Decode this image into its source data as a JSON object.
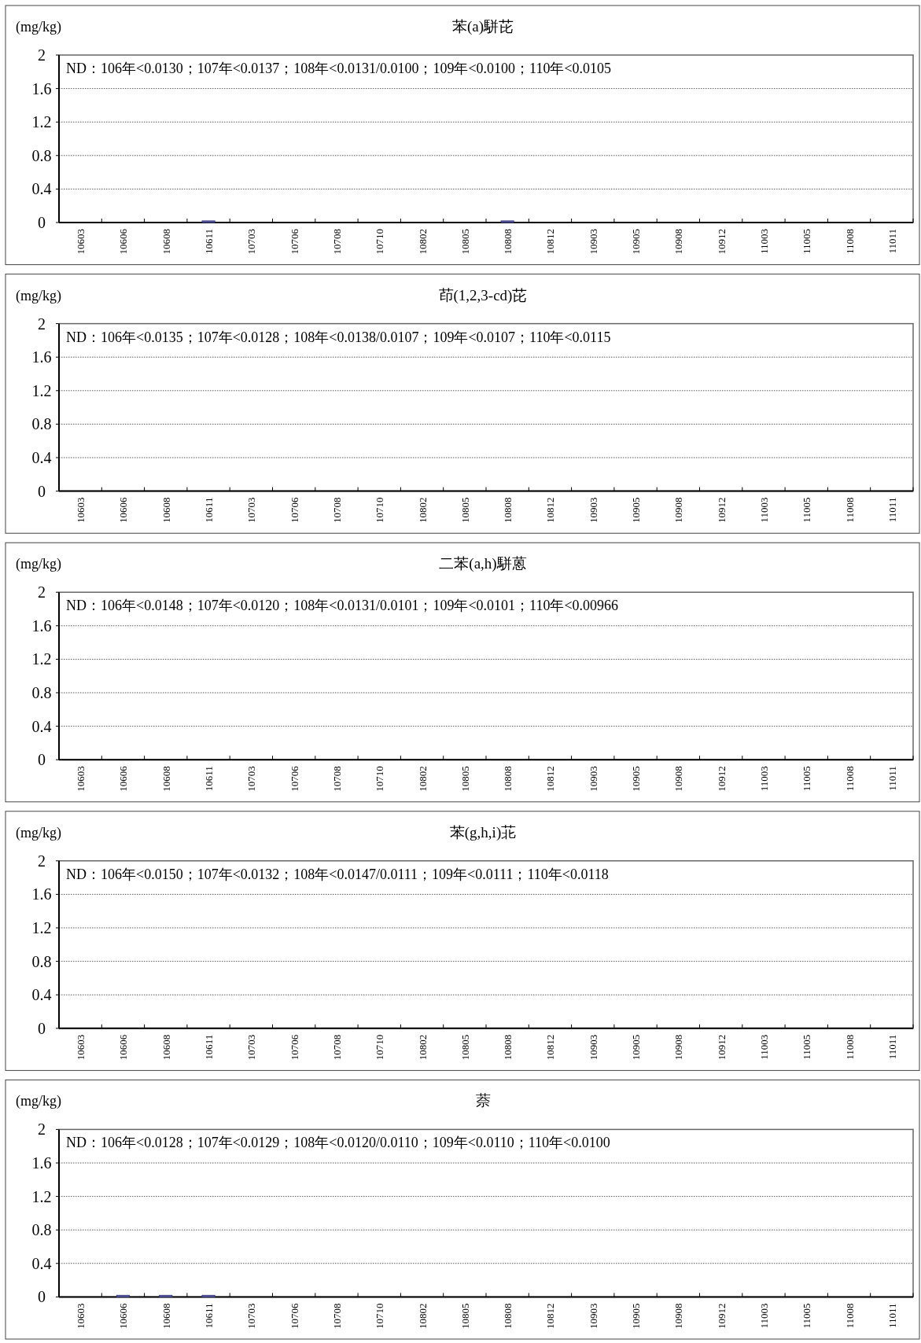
{
  "chart_data": [
    {
      "type": "bar",
      "title": "苯(a)駢芘",
      "ylabel": "(mg/kg)",
      "categories": [
        "10603",
        "10606",
        "10608",
        "10611",
        "10703",
        "10706",
        "10708",
        "10710",
        "10802",
        "10805",
        "10808",
        "10812",
        "10903",
        "10905",
        "10908",
        "10912",
        "11003",
        "11005",
        "11008",
        "11011"
      ],
      "values": [
        null,
        null,
        null,
        0.02,
        null,
        null,
        null,
        null,
        null,
        null,
        0.02,
        null,
        null,
        null,
        null,
        null,
        null,
        null,
        null,
        null
      ],
      "color": "#5a5aa8",
      "ylim": [
        0,
        2
      ],
      "yticks": [
        0,
        0.4,
        0.8,
        1.2,
        1.6,
        2
      ],
      "grid": "y",
      "annotations": [
        "ND：106年<0.0130；107年<0.0137；108年<0.0131/0.0100；109年<0.0100；110年<0.0105"
      ]
    },
    {
      "type": "bar",
      "title": "茚(1,2,3-cd)芘",
      "ylabel": "(mg/kg)",
      "categories": [
        "10603",
        "10606",
        "10608",
        "10611",
        "10703",
        "10706",
        "10708",
        "10710",
        "10802",
        "10805",
        "10808",
        "10812",
        "10903",
        "10905",
        "10908",
        "10912",
        "11003",
        "11005",
        "11008",
        "11011"
      ],
      "values": [
        null,
        null,
        null,
        null,
        null,
        null,
        null,
        null,
        null,
        null,
        null,
        null,
        null,
        null,
        null,
        null,
        null,
        null,
        null,
        null
      ],
      "ylim": [
        0,
        2
      ],
      "yticks": [
        0,
        0.4,
        0.8,
        1.2,
        1.6,
        2
      ],
      "grid": "y",
      "annotations": [
        "ND：106年<0.0135；107年<0.0128；108年<0.0138/0.0107；109年<0.0107；110年<0.0115"
      ]
    },
    {
      "type": "bar",
      "title": "二苯(a,h)駢蒽",
      "ylabel": "(mg/kg)",
      "categories": [
        "10603",
        "10606",
        "10608",
        "10611",
        "10703",
        "10706",
        "10708",
        "10710",
        "10802",
        "10805",
        "10808",
        "10812",
        "10903",
        "10905",
        "10908",
        "10912",
        "11003",
        "11005",
        "11008",
        "11011"
      ],
      "values": [
        null,
        null,
        null,
        null,
        null,
        null,
        null,
        null,
        null,
        null,
        null,
        null,
        null,
        null,
        null,
        null,
        null,
        null,
        null,
        null
      ],
      "ylim": [
        0,
        2
      ],
      "yticks": [
        0,
        0.4,
        0.8,
        1.2,
        1.6,
        2
      ],
      "grid": "y",
      "annotations": [
        "ND：106年<0.0148；107年<0.0120；108年<0.0131/0.0101；109年<0.0101；110年<0.00966"
      ]
    },
    {
      "type": "bar",
      "title": "苯(g,h,i)苝",
      "ylabel": "(mg/kg)",
      "categories": [
        "10603",
        "10606",
        "10608",
        "10611",
        "10703",
        "10706",
        "10708",
        "10710",
        "10802",
        "10805",
        "10808",
        "10812",
        "10903",
        "10905",
        "10908",
        "10912",
        "11003",
        "11005",
        "11008",
        "11011"
      ],
      "values": [
        null,
        null,
        null,
        null,
        null,
        null,
        null,
        null,
        null,
        null,
        null,
        null,
        null,
        null,
        null,
        null,
        null,
        null,
        null,
        null
      ],
      "ylim": [
        0,
        2
      ],
      "yticks": [
        0,
        0.4,
        0.8,
        1.2,
        1.6,
        2
      ],
      "grid": "y",
      "annotations": [
        "ND：106年<0.0150；107年<0.0132；108年<0.0147/0.0111；109年<0.0111；110年<0.0118"
      ]
    },
    {
      "type": "bar",
      "title": "萘",
      "ylabel": "(mg/kg)",
      "categories": [
        "10603",
        "10606",
        "10608",
        "10611",
        "10703",
        "10706",
        "10708",
        "10710",
        "10802",
        "10805",
        "10808",
        "10812",
        "10903",
        "10905",
        "10908",
        "10912",
        "11003",
        "11005",
        "11008",
        "11011"
      ],
      "values": [
        null,
        0.02,
        0.02,
        0.02,
        null,
        null,
        null,
        null,
        null,
        null,
        null,
        null,
        null,
        null,
        null,
        null,
        null,
        null,
        null,
        null
      ],
      "color": "#5a5aa8",
      "ylim": [
        0,
        2
      ],
      "yticks": [
        0,
        0.4,
        0.8,
        1.2,
        1.6,
        2
      ],
      "grid": "y",
      "annotations": [
        "ND：106年<0.0128；107年<0.0129；108年<0.0120/0.0110；109年<0.0110；110年<0.0100"
      ]
    }
  ]
}
